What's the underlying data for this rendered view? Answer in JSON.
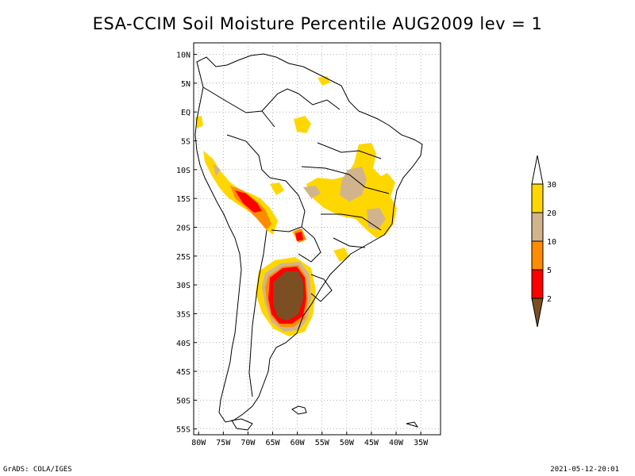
{
  "title": "ESA-CCIM Soil Moisture Percentile AUG2009 lev = 1",
  "footer": {
    "left": "GrADS: COLA/IGES",
    "right": "2021-05-12-20:01"
  },
  "map": {
    "lat_labels": [
      "10N",
      "5N",
      "EQ",
      "5S",
      "10S",
      "15S",
      "20S",
      "25S",
      "30S",
      "35S",
      "40S",
      "45S",
      "50S",
      "55S"
    ],
    "lat_values": [
      10,
      5,
      0,
      -5,
      -10,
      -15,
      -20,
      -25,
      -30,
      -35,
      -40,
      -45,
      -50,
      -55
    ],
    "lon_labels": [
      "80W",
      "75W",
      "70W",
      "65W",
      "60W",
      "55W",
      "50W",
      "45W",
      "40W",
      "35W"
    ],
    "lon_values": [
      -80,
      -75,
      -70,
      -65,
      -60,
      -55,
      -50,
      -45,
      -40,
      -35
    ],
    "lon_range": [
      -81,
      -31
    ],
    "lat_range": [
      -56,
      12
    ],
    "grid": true
  },
  "legend": {
    "labels": [
      "30",
      "20",
      "10",
      "5",
      "2"
    ],
    "colors": [
      "#ffd700",
      "#d2b48c",
      "#ff8c00",
      "#ff0000",
      "#7b4f22"
    ],
    "top_color": "#ffffff",
    "bottom_color": "#7b4f22"
  },
  "colors": {
    "coast": "#000000",
    "grid": "#888888",
    "p2": "#7b4f22",
    "p5": "#ff0000",
    "p10": "#ff8c00",
    "p20": "#d2b48c",
    "p30": "#ffd700"
  }
}
